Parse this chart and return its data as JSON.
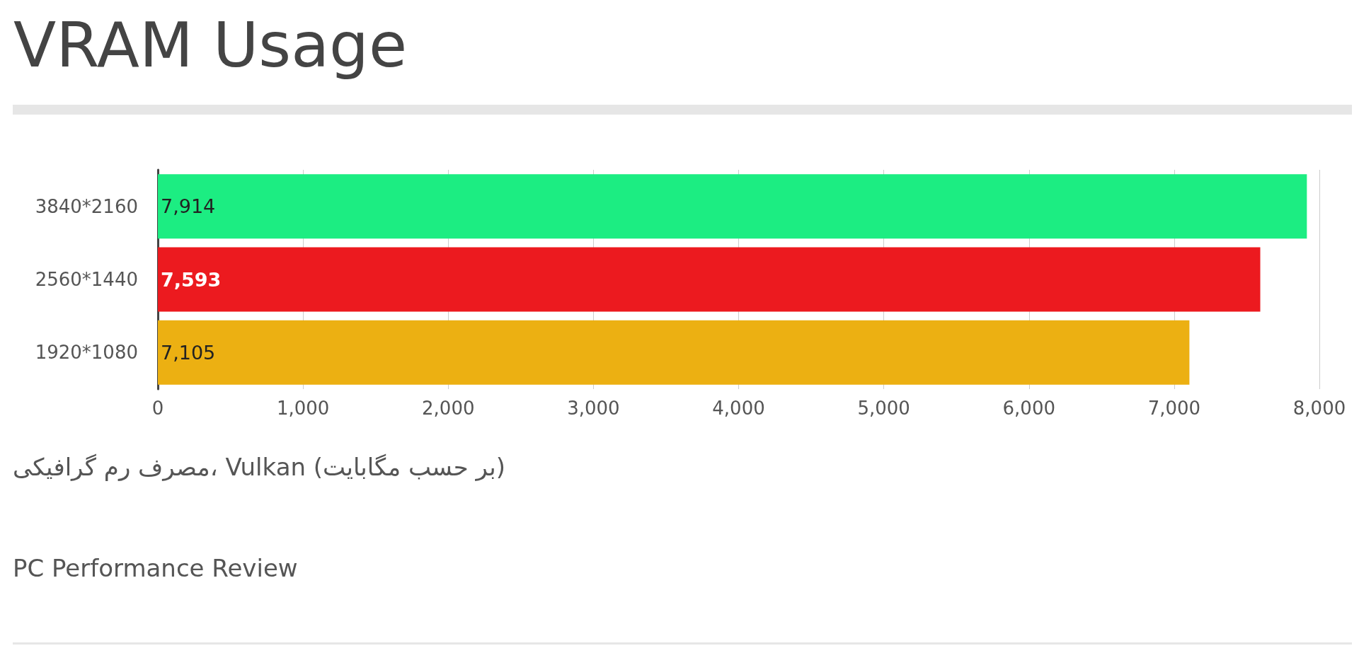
{
  "chart_data": {
    "type": "bar",
    "orientation": "horizontal",
    "title": "VRAM Usage",
    "categories": [
      "3840*2160",
      "2560*1440",
      "1920*1080"
    ],
    "values": [
      7914,
      7593,
      7105
    ],
    "colors": [
      "#1ced82",
      "#ec1a1f",
      "#ecb012"
    ],
    "value_labels": [
      "7,914",
      "7,593",
      "7,105"
    ],
    "xlim": [
      0,
      8000
    ],
    "xticks": [
      0,
      {
        "value": 1000,
        "label": "1,000"
      },
      {
        "value": 2000,
        "label": "2,000"
      },
      {
        "value": 3000,
        "label": "3,000"
      },
      {
        "value": 4000,
        "label": "4,000"
      },
      {
        "value": 5000,
        "label": "5,000"
      },
      {
        "value": 6000,
        "label": "6,000"
      },
      {
        "value": 7000,
        "label": "7,000"
      },
      {
        "value": 8000,
        "label": "8,000"
      }
    ],
    "grid": "x",
    "annotations": [
      "مصرف رم گرافیکی، Vulkan (بر حسب مگابایت)",
      "PC Performance Review"
    ]
  }
}
